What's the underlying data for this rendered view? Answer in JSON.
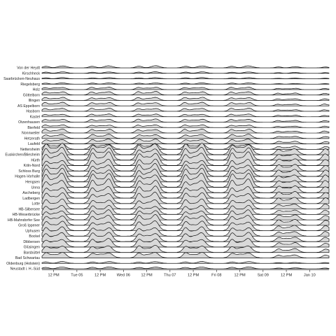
{
  "chart_data": {
    "type": "ridgeline",
    "title": "",
    "xlabel": "",
    "ylabel": "",
    "x_ticks": [
      "12 PM",
      "Tue 05",
      "12 PM",
      "Wed 06",
      "12 PM",
      "Thu 07",
      "12 PM",
      "Fri 08",
      "12 PM",
      "Sat 09",
      "12 PM",
      "Jan 10"
    ],
    "x_tick_hours": [
      12,
      24,
      36,
      48,
      60,
      72,
      84,
      96,
      108,
      120,
      132,
      144
    ],
    "x_range_hours": [
      6,
      154
    ],
    "fill_color": "#d9d9d9",
    "stroke_color": "#111111",
    "series": [
      {
        "name": "Von der Heydt",
        "amp": 0.35,
        "style": "a"
      },
      {
        "name": "Kirschheck",
        "amp": 0.25,
        "style": "a"
      },
      {
        "name": "Saarbrücken-Neuhaus",
        "amp": 0.2,
        "style": "a"
      },
      {
        "name": "Riegelsberg",
        "amp": 0.22,
        "style": "a"
      },
      {
        "name": "Holz",
        "amp": 0.3,
        "style": "b"
      },
      {
        "name": "Göttelborn",
        "amp": 0.45,
        "style": "b"
      },
      {
        "name": "Illingen",
        "amp": 0.4,
        "style": "b"
      },
      {
        "name": "AS Eppelborn",
        "amp": 0.45,
        "style": "b"
      },
      {
        "name": "Hasborn",
        "amp": 0.4,
        "style": "b"
      },
      {
        "name": "Kastel",
        "amp": 0.35,
        "style": "b"
      },
      {
        "name": "Otzenhausen",
        "amp": 0.4,
        "style": "b"
      },
      {
        "name": "Bierfeld",
        "amp": 0.35,
        "style": "b"
      },
      {
        "name": "Nonnweiler",
        "amp": 0.5,
        "style": "b"
      },
      {
        "name": "Hetzerath",
        "amp": 0.6,
        "style": "c"
      },
      {
        "name": "Laufeld",
        "amp": 0.7,
        "style": "c"
      },
      {
        "name": "Nettersheim",
        "amp": 0.8,
        "style": "c"
      },
      {
        "name": "Euskirchen/Bliesheim",
        "amp": 1.6,
        "style": "c"
      },
      {
        "name": "Hürth",
        "amp": 1.8,
        "style": "c"
      },
      {
        "name": "Köln-Nord",
        "amp": 1.9,
        "style": "c"
      },
      {
        "name": "Schloss Burg",
        "amp": 1.7,
        "style": "c"
      },
      {
        "name": "Hagen-Vorhalle",
        "amp": 1.8,
        "style": "c"
      },
      {
        "name": "Hengsen",
        "amp": 1.9,
        "style": "c"
      },
      {
        "name": "Unna",
        "amp": 2.0,
        "style": "c"
      },
      {
        "name": "Ascheberg",
        "amp": 1.9,
        "style": "c"
      },
      {
        "name": "Ladbergen",
        "amp": 1.7,
        "style": "c"
      },
      {
        "name": "Lotte",
        "amp": 1.6,
        "style": "c"
      },
      {
        "name": "HB-Silbersee",
        "amp": 1.4,
        "style": "c"
      },
      {
        "name": "HB-Weserbrücke",
        "amp": 1.3,
        "style": "c"
      },
      {
        "name": "HB-Mahndorfer See",
        "amp": 1.4,
        "style": "c"
      },
      {
        "name": "Groß Ippener",
        "amp": 1.5,
        "style": "c"
      },
      {
        "name": "Uphusen",
        "amp": 1.4,
        "style": "c"
      },
      {
        "name": "Bockel",
        "amp": 1.3,
        "style": "c"
      },
      {
        "name": "Dibbersen",
        "amp": 1.3,
        "style": "c"
      },
      {
        "name": "Glüsingen",
        "amp": 1.2,
        "style": "c"
      },
      {
        "name": "Barsbüttel",
        "amp": 1.0,
        "style": "c"
      },
      {
        "name": "Bad Schwartau",
        "amp": 0.8,
        "style": "c"
      },
      {
        "name": "Oldenburg (Holstein)",
        "amp": 0.3,
        "style": "a"
      },
      {
        "name": "Neustadt i. H.-Süd",
        "amp": 0.3,
        "style": "a"
      }
    ]
  }
}
